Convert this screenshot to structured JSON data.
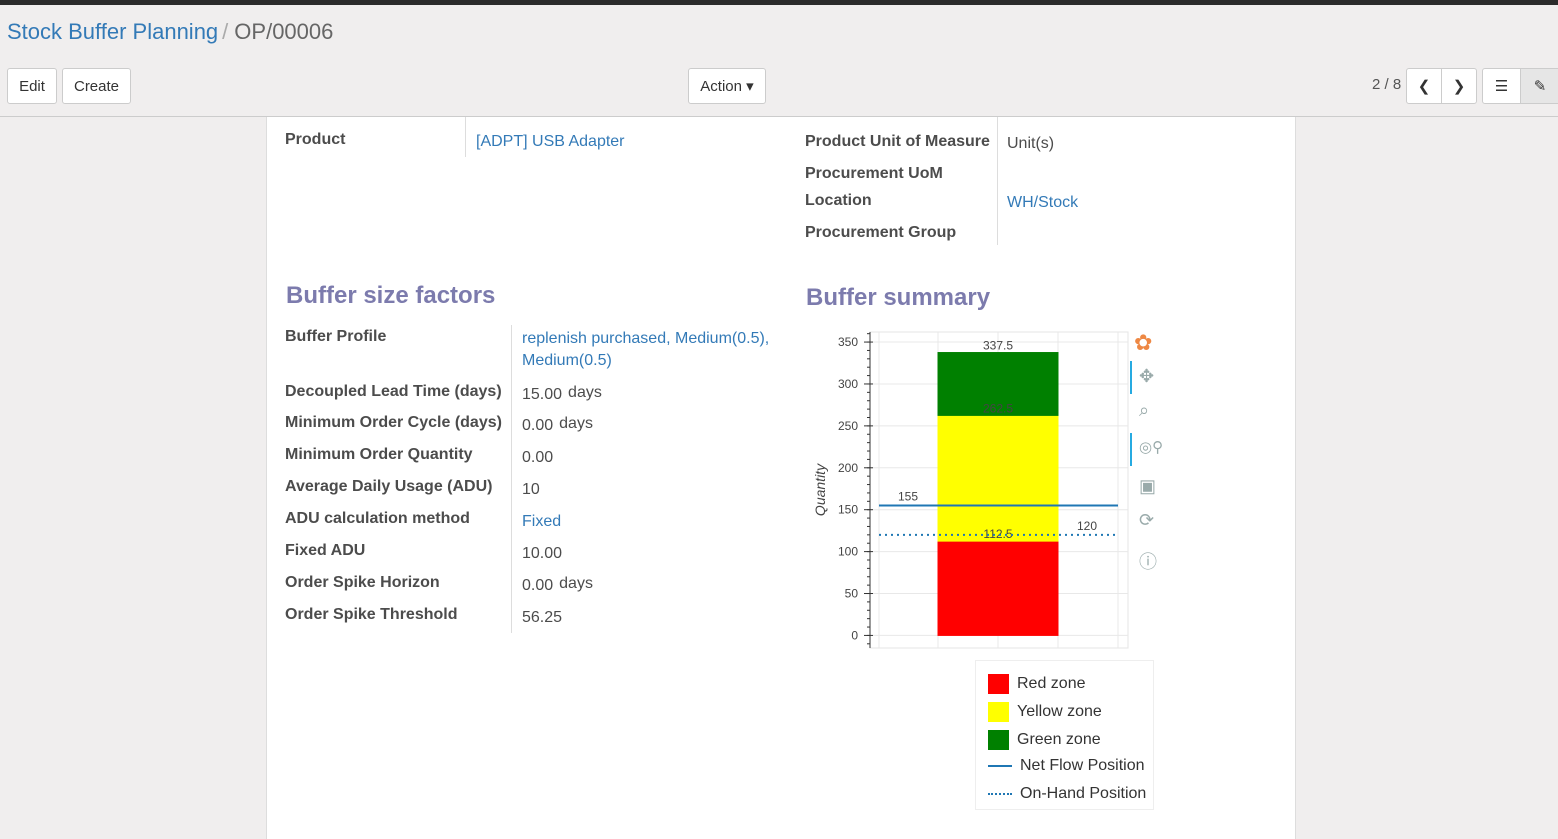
{
  "breadcrumb": {
    "parent": "Stock Buffer Planning",
    "current": "OP/00006"
  },
  "toolbar": {
    "edit": "Edit",
    "create": "Create",
    "action": "Action ▾",
    "pager": "2 / 8"
  },
  "header_fields": [
    {
      "label": "Product",
      "value": "[ADPT] USB Adapter",
      "link": true
    },
    {
      "label": "Product Unit of Measure",
      "value": "Unit(s)"
    },
    {
      "label": "Procurement UoM",
      "value": ""
    },
    {
      "label": "Location",
      "value": "WH/Stock",
      "link": true
    },
    {
      "label": "Procurement Group",
      "value": ""
    }
  ],
  "factors": {
    "title": "Buffer size factors",
    "rows": [
      {
        "label": "Buffer Profile",
        "value": "replenish purchased, Medium(0.5), Medium(0.5)",
        "link": true
      },
      {
        "label": "Decoupled Lead Time (days)",
        "value": "15.00",
        "unit": "days"
      },
      {
        "label": "Minimum Order Cycle (days)",
        "value": "0.00",
        "unit": "days"
      },
      {
        "label": "Minimum Order Quantity",
        "value": "0.00"
      },
      {
        "label": "Average Daily Usage (ADU)",
        "value": "10"
      },
      {
        "label": "ADU calculation method",
        "value": "Fixed",
        "link": true
      },
      {
        "label": "Fixed ADU",
        "value": "10.00"
      },
      {
        "label": "Order Spike Horizon",
        "value": "0.00",
        "unit": "days"
      },
      {
        "label": "Order Spike Threshold",
        "value": "56.25"
      }
    ]
  },
  "summary": {
    "title": "Buffer summary"
  },
  "chart_data": {
    "type": "bar",
    "stacked": true,
    "ylabel": "Quantity",
    "ylim": [
      -15,
      362
    ],
    "yticks": [
      "0",
      "50",
      "100",
      "150",
      "200",
      "250",
      "300",
      "350"
    ],
    "grid": true,
    "zones": [
      {
        "name": "Red zone",
        "from": 0,
        "to": 112.5,
        "color": "#ff0000",
        "label": "112.5"
      },
      {
        "name": "Yellow zone",
        "from": 112.5,
        "to": 262.5,
        "color": "#ffff00",
        "label": "262.5"
      },
      {
        "name": "Green zone",
        "from": 262.5,
        "to": 337.5,
        "color": "#008000",
        "label": "337.5"
      }
    ],
    "lines": [
      {
        "name": "Net Flow Position",
        "value": 155,
        "style": "solid",
        "color": "#1f77b4",
        "label": "155"
      },
      {
        "name": "On-Hand Position",
        "value": 120,
        "style": "dotted",
        "color": "#1f77b4",
        "label": "120"
      }
    ],
    "legend": "bottom"
  }
}
